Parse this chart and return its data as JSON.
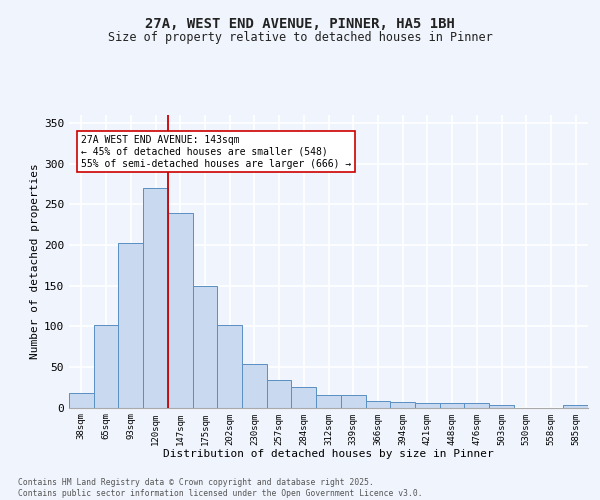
{
  "title_line1": "27A, WEST END AVENUE, PINNER, HA5 1BH",
  "title_line2": "Size of property relative to detached houses in Pinner",
  "xlabel": "Distribution of detached houses by size in Pinner",
  "ylabel": "Number of detached properties",
  "bar_labels": [
    "38sqm",
    "65sqm",
    "93sqm",
    "120sqm",
    "147sqm",
    "175sqm",
    "202sqm",
    "230sqm",
    "257sqm",
    "284sqm",
    "312sqm",
    "339sqm",
    "366sqm",
    "394sqm",
    "421sqm",
    "448sqm",
    "476sqm",
    "503sqm",
    "530sqm",
    "558sqm",
    "585sqm"
  ],
  "bar_values": [
    18,
    102,
    203,
    270,
    240,
    150,
    101,
    53,
    34,
    25,
    15,
    15,
    8,
    7,
    5,
    5,
    5,
    3,
    0,
    0,
    3
  ],
  "bar_color": "#c8d9f0",
  "bar_edge_color": "#5a8fc2",
  "vline_index": 4,
  "vline_color": "#cc0000",
  "annotation_text": "27A WEST END AVENUE: 143sqm\n← 45% of detached houses are smaller (548)\n55% of semi-detached houses are larger (666) →",
  "annotation_box_color": "#ffffff",
  "annotation_box_edge": "#cc0000",
  "ylim": [
    0,
    360
  ],
  "yticks": [
    0,
    50,
    100,
    150,
    200,
    250,
    300,
    350
  ],
  "footer_text": "Contains HM Land Registry data © Crown copyright and database right 2025.\nContains public sector information licensed under the Open Government Licence v3.0.",
  "fig_bg_color": "#f0f4fc",
  "grid_color": "#ffffff"
}
